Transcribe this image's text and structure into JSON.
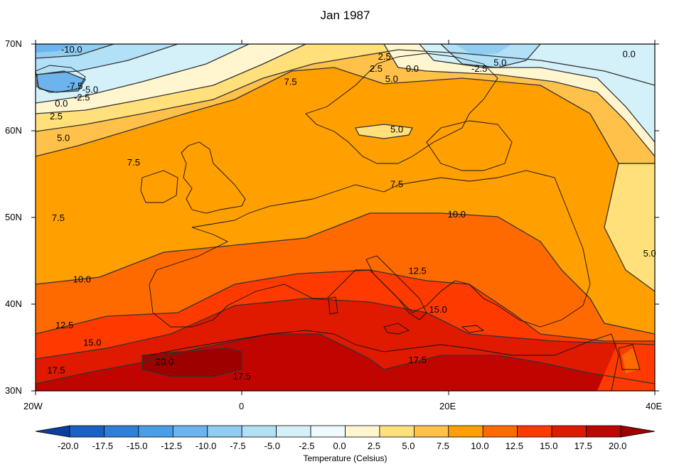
{
  "title": "Jan 1987",
  "colorbar_title": "Temperature (Celsius)",
  "lat_labels": [
    "70N",
    "60N",
    "50N",
    "40N",
    "30N"
  ],
  "lon_labels": [
    "20W",
    "0",
    "20E",
    "40E"
  ],
  "colorbar_levels": [
    "-20.0",
    "-17.5",
    "-15.0",
    "-12.5",
    "-10.0",
    "-7.5",
    "-5.0",
    "-2.5",
    "0.0",
    "2.5",
    "5.0",
    "7.5",
    "10.0",
    "12.5",
    "15.0",
    "17.5",
    "20.0"
  ],
  "colorbar_colors": [
    "#0a3e9c",
    "#1961c4",
    "#2f7fd8",
    "#4a9ee6",
    "#6cb4ee",
    "#8fcdf3",
    "#b2e0f6",
    "#d4f1fa",
    "#eefaff",
    "#fff6d0",
    "#ffe07a",
    "#ffc14a",
    "#ff9f00",
    "#ff6a00",
    "#ff3a00",
    "#e01a00",
    "#c00500",
    "#9e0000"
  ],
  "contour_labels": [
    {
      "text": "-10.0",
      "lon": -16.5,
      "lat": 69.0
    },
    {
      "text": "-7.5",
      "lon": -16.2,
      "lat": 64.8
    },
    {
      "text": "-5.0",
      "lon": -14.7,
      "lat": 64.4
    },
    {
      "text": "-2.5",
      "lon": -15.5,
      "lat": 63.5
    },
    {
      "text": "0.0",
      "lon": -17.5,
      "lat": 62.8
    },
    {
      "text": "2.5",
      "lon": -18.0,
      "lat": 61.3
    },
    {
      "text": "5.0",
      "lon": -17.3,
      "lat": 58.8
    },
    {
      "text": "7.5",
      "lon": -10.5,
      "lat": 56.0
    },
    {
      "text": "7.5",
      "lon": 4.7,
      "lat": 65.3
    },
    {
      "text": "5.0",
      "lon": 15.0,
      "lat": 59.8
    },
    {
      "text": "7.5",
      "lon": 15.0,
      "lat": 53.5
    },
    {
      "text": "7.5",
      "lon": -17.8,
      "lat": 49.6
    },
    {
      "text": "10.0",
      "lon": 20.8,
      "lat": 50.0
    },
    {
      "text": "10.0",
      "lon": -15.5,
      "lat": 42.5
    },
    {
      "text": "12.5",
      "lon": 17.0,
      "lat": 43.5
    },
    {
      "text": "15.0",
      "lon": 19.0,
      "lat": 39.0
    },
    {
      "text": "12.5",
      "lon": -17.2,
      "lat": 37.2
    },
    {
      "text": "15.0",
      "lon": -14.5,
      "lat": 35.2
    },
    {
      "text": "17.5",
      "lon": -18.0,
      "lat": 32.0
    },
    {
      "text": "20.0",
      "lon": -7.5,
      "lat": 33.0
    },
    {
      "text": "17.5",
      "lon": 0.0,
      "lat": 31.3
    },
    {
      "text": "17.5",
      "lon": 17.0,
      "lat": 33.2
    },
    {
      "text": "2.5",
      "lon": 13.0,
      "lat": 66.8
    },
    {
      "text": "2.5",
      "lon": 13.8,
      "lat": 68.2
    },
    {
      "text": "0.0",
      "lon": 16.5,
      "lat": 66.8
    },
    {
      "text": "5.0",
      "lon": 14.5,
      "lat": 65.6
    },
    {
      "text": "-2.5",
      "lon": 23.0,
      "lat": 66.8
    },
    {
      "text": "5.0",
      "lon": 25.0,
      "lat": 67.5
    },
    {
      "text": "0.0",
      "lon": 37.5,
      "lat": 68.5
    },
    {
      "text": "5.0",
      "lon": 39.5,
      "lat": 45.5
    }
  ]
}
